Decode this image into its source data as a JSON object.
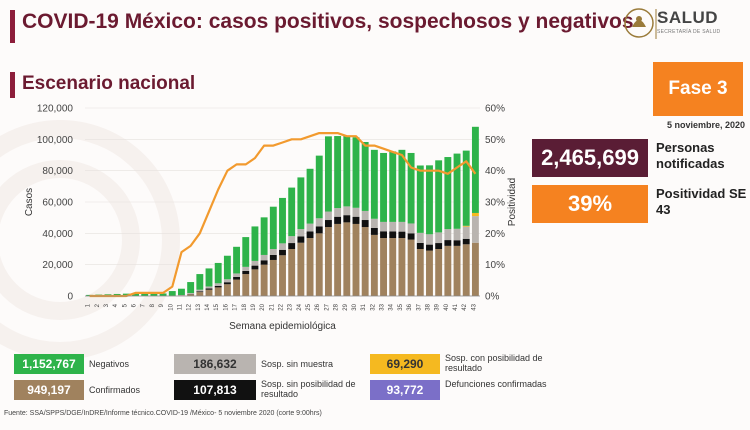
{
  "header": {
    "title": "COVID-19 México: casos positivos, sospechosos y negativos",
    "subtitle": "Escenario nacional",
    "logo_text": "SALUD",
    "logo_sub": "SECRETARÍA DE SALUD"
  },
  "phase_label": "Fase 3",
  "date": "5 noviembre, 2020",
  "stats": {
    "notified_value": "2,465,699",
    "notified_label": "Personas notificadas",
    "positivity_value": "39%",
    "positivity_label": "Positividad SE 43"
  },
  "legend": [
    {
      "value": "1,152,767",
      "label": "Negativos",
      "color": "#2eb34a"
    },
    {
      "value": "186,632",
      "label": "Sosp. sin muestra",
      "color": "#b9b4b0"
    },
    {
      "value": "69,290",
      "label": "Sosp. con posibilidad de resultado",
      "color": "#f5b920"
    },
    {
      "value": "949,197",
      "label": "Confirmados",
      "color": "#a0825e"
    },
    {
      "value": "107,813",
      "label": "Sosp. sin posibilidad de resultado",
      "color": "#111111"
    },
    {
      "value": "93,772",
      "label": "Defunciones confirmadas",
      "color": "#7b6fc8"
    }
  ],
  "source": "Fuente: SSA/SPPS/DGE/InDRE/Informe técnico.COVID-19 /México- 5 noviembre 2020 (corte 9:00hrs)",
  "chart_data": {
    "type": "bar",
    "stacked": true,
    "xlabel": "Semana epidemiológica",
    "ylabel": "Casos",
    "y2label": "Positividad",
    "ylim": [
      0,
      120000
    ],
    "y2lim": [
      0,
      60
    ],
    "yticks": [
      "0",
      "20,000",
      "40,000",
      "60,000",
      "80,000",
      "100,000",
      "120,000"
    ],
    "y2ticks": [
      "0%",
      "10%",
      "20%",
      "30%",
      "40%",
      "50%",
      "60%"
    ],
    "categories": [
      "1",
      "2",
      "3",
      "4",
      "5",
      "6",
      "7",
      "8",
      "9",
      "10",
      "11",
      "12",
      "13",
      "14",
      "15",
      "16",
      "17",
      "18",
      "19",
      "20",
      "21",
      "22",
      "23",
      "24",
      "25",
      "26",
      "27",
      "28",
      "29",
      "30",
      "31",
      "32",
      "33",
      "34",
      "35",
      "36",
      "37",
      "38",
      "39",
      "40",
      "41",
      "42",
      "43"
    ],
    "series": [
      {
        "name": "Confirmados",
        "color": "#a0825e",
        "values": [
          0,
          0,
          0,
          0,
          0,
          0,
          0,
          0,
          0,
          50,
          300,
          1000,
          2500,
          4000,
          5500,
          7500,
          10500,
          14000,
          17000,
          20000,
          23000,
          26000,
          30000,
          34000,
          37000,
          40000,
          44000,
          46000,
          47000,
          46000,
          44000,
          39000,
          37000,
          37000,
          37000,
          36000,
          30000,
          29000,
          30000,
          32000,
          32000,
          33000,
          34000
        ]
      },
      {
        "name": "Sosp. sin posibilidad de resultado",
        "color": "#111111",
        "values": [
          0,
          0,
          0,
          0,
          0,
          0,
          0,
          0,
          0,
          0,
          50,
          200,
          500,
          800,
          1000,
          1300,
          1700,
          2000,
          2400,
          2800,
          3200,
          3500,
          3800,
          4000,
          4200,
          4400,
          4500,
          4600,
          4600,
          4600,
          4500,
          4400,
          4300,
          4200,
          4100,
          4000,
          3900,
          3800,
          3800,
          3700,
          3600,
          3500,
          0
        ]
      },
      {
        "name": "Sosp. sin muestra",
        "color": "#b9b4b0",
        "values": [
          0,
          0,
          0,
          0,
          0,
          0,
          0,
          0,
          0,
          100,
          300,
          700,
          1000,
          1300,
          1600,
          1900,
          2200,
          2600,
          3000,
          3400,
          3800,
          4100,
          4400,
          4700,
          5000,
          5200,
          5400,
          5500,
          5600,
          5700,
          5800,
          5900,
          6000,
          6100,
          6200,
          6300,
          6400,
          6600,
          6800,
          7000,
          7300,
          7800,
          17000
        ]
      },
      {
        "name": "Sosp. con posibilidad de resultado",
        "color": "#f5b920",
        "values": [
          0,
          0,
          0,
          0,
          0,
          0,
          0,
          0,
          0,
          0,
          0,
          0,
          0,
          0,
          0,
          0,
          0,
          0,
          0,
          0,
          0,
          0,
          0,
          0,
          0,
          0,
          0,
          0,
          0,
          0,
          0,
          0,
          0,
          0,
          0,
          0,
          0,
          0,
          0,
          0,
          0,
          500,
          2000
        ]
      },
      {
        "name": "Negativos",
        "color": "#2eb34a",
        "values": [
          700,
          900,
          1100,
          1300,
          1500,
          1600,
          1600,
          1500,
          1600,
          3000,
          4000,
          7000,
          10000,
          11500,
          13000,
          15000,
          17000,
          19000,
          22000,
          24000,
          27000,
          29000,
          31000,
          33000,
          35000,
          40000,
          48000,
          46000,
          45000,
          45000,
          44000,
          44000,
          44000,
          45000,
          46000,
          45000,
          43000,
          44000,
          46000,
          46000,
          48000,
          48000,
          55000
        ]
      }
    ],
    "line": {
      "name": "Positividad",
      "color": "#f29a2e",
      "values": [
        0,
        0,
        0,
        0,
        0,
        1,
        1,
        1,
        1,
        3,
        14,
        16,
        20,
        27,
        34,
        40,
        42,
        42,
        44,
        48,
        48,
        49,
        50,
        50,
        51,
        52,
        52,
        52,
        51,
        51,
        48,
        48,
        47,
        46,
        45,
        41,
        40,
        40,
        40,
        39,
        41,
        43,
        39
      ]
    }
  }
}
